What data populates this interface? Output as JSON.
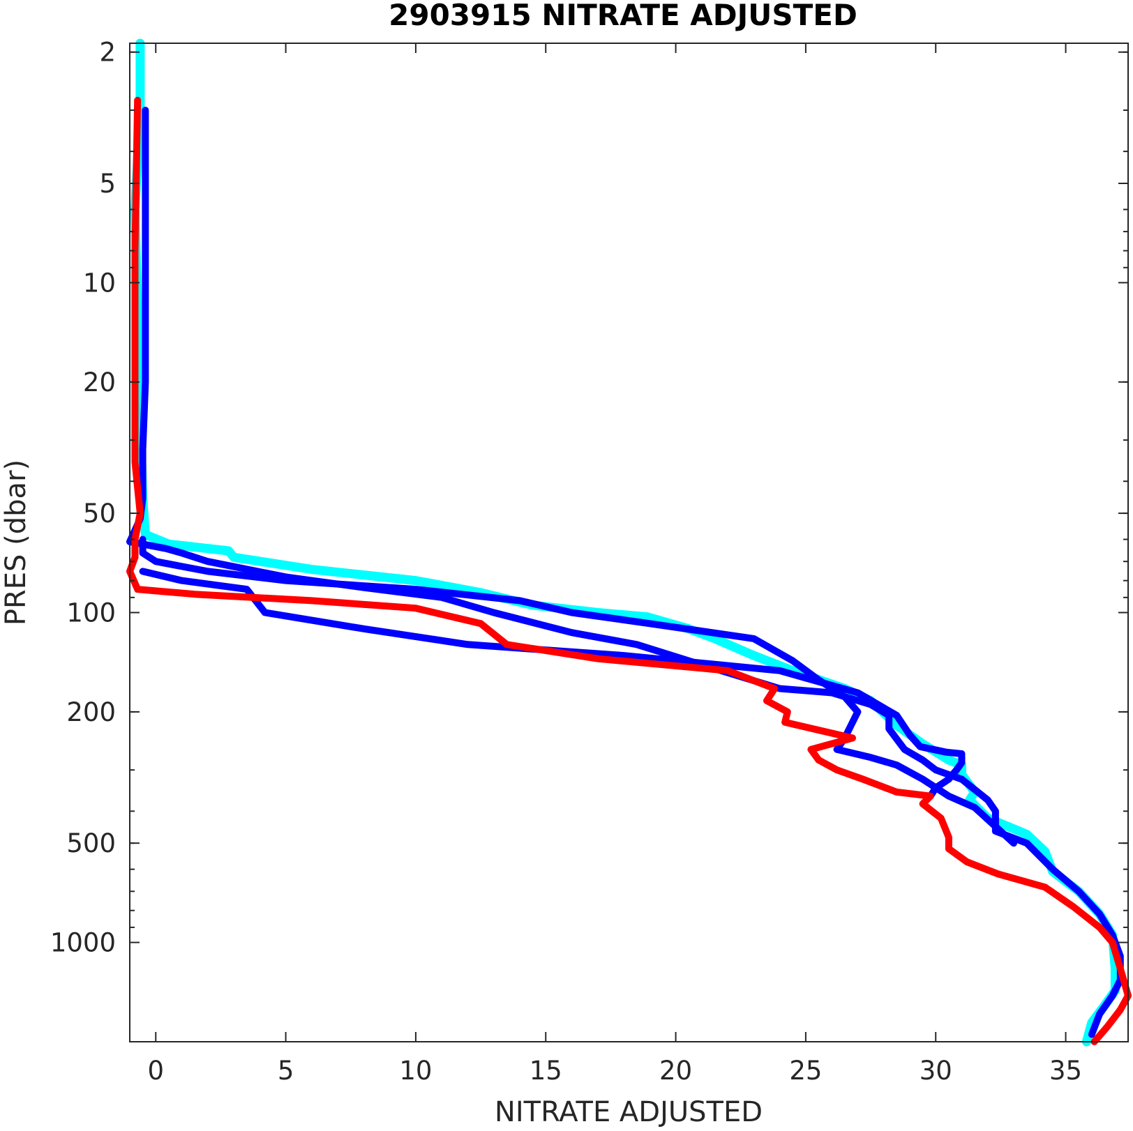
{
  "chart_data": {
    "type": "line",
    "title": "2903915  NITRATE ADJUSTED",
    "xlabel": "NITRATE ADJUSTED",
    "ylabel": "PRES (dbar)",
    "xlim": [
      -1,
      37.4
    ],
    "ylim": [
      1.88,
      2000
    ],
    "y_scale": "log",
    "y_reversed": true,
    "grid": false,
    "x_ticks": [
      0,
      5,
      10,
      15,
      20,
      25,
      30,
      35
    ],
    "y_ticks": [
      2,
      5,
      10,
      20,
      50,
      100,
      200,
      500,
      1000
    ],
    "y_tick_labels": [
      "2",
      "5",
      "10",
      "20",
      "50",
      "100",
      "200",
      "500",
      "1000"
    ],
    "series": [
      {
        "color": "#00ffff",
        "width": 13,
        "points": [
          [
            -0.6,
            1.88
          ],
          [
            -0.6,
            3
          ],
          [
            -0.8,
            6
          ],
          [
            -0.7,
            12
          ],
          [
            -0.6,
            25
          ],
          [
            -0.5,
            45
          ],
          [
            -0.4,
            58
          ],
          [
            0.5,
            62
          ],
          [
            2.8,
            65
          ],
          [
            3.0,
            68
          ],
          [
            6,
            74
          ],
          [
            10,
            80
          ],
          [
            12.5,
            87
          ],
          [
            14.5,
            95
          ],
          [
            17,
            100
          ],
          [
            18.9,
            103
          ],
          [
            20.5,
            112
          ],
          [
            21.5,
            120
          ],
          [
            23,
            135
          ],
          [
            24.5,
            150
          ],
          [
            26.5,
            170
          ],
          [
            27.5,
            185
          ],
          [
            28.5,
            220
          ],
          [
            29.5,
            250
          ],
          [
            30.5,
            280
          ],
          [
            31,
            290
          ],
          [
            31,
            310
          ],
          [
            31.5,
            350
          ],
          [
            31.3,
            370
          ],
          [
            32,
            420
          ],
          [
            33.5,
            470
          ],
          [
            34.2,
            530
          ],
          [
            34.5,
            610
          ],
          [
            35.5,
            700
          ],
          [
            36.3,
            820
          ],
          [
            36.8,
            950
          ],
          [
            36.9,
            1200
          ],
          [
            36.9,
            1400
          ],
          [
            36.5,
            1550
          ],
          [
            36.0,
            1750
          ],
          [
            35.8,
            2000
          ]
        ]
      },
      {
        "color": "#0000ff",
        "width": 10,
        "points": [
          [
            -0.4,
            3
          ],
          [
            -0.4,
            8
          ],
          [
            -0.4,
            14
          ],
          [
            -0.4,
            20
          ],
          [
            -0.5,
            32
          ],
          [
            -0.5,
            45
          ],
          [
            -0.6,
            52
          ],
          [
            -1.0,
            61
          ],
          [
            -0.5,
            62
          ],
          [
            0.4,
            64
          ],
          [
            1,
            66
          ],
          [
            2,
            70
          ],
          [
            5,
            78
          ],
          [
            8,
            84
          ],
          [
            11,
            90
          ],
          [
            13,
            100
          ],
          [
            16,
            115
          ],
          [
            18.5,
            125
          ],
          [
            20.5,
            140
          ],
          [
            24,
            170
          ],
          [
            26,
            175
          ],
          [
            27.5,
            190
          ],
          [
            28.2,
            205
          ],
          [
            28.2,
            225
          ],
          [
            28.8,
            260
          ],
          [
            29.5,
            280
          ],
          [
            30,
            300
          ],
          [
            30.5,
            310
          ],
          [
            31,
            320
          ],
          [
            32,
            370
          ],
          [
            32.3,
            400
          ],
          [
            32.3,
            460
          ],
          [
            33.5,
            500
          ],
          [
            34.5,
            600
          ],
          [
            35.5,
            700
          ],
          [
            36.3,
            820
          ],
          [
            36.8,
            950
          ],
          [
            37.1,
            1100
          ],
          [
            37.1,
            1300
          ],
          [
            36.8,
            1450
          ],
          [
            36.3,
            1650
          ],
          [
            36.0,
            1900
          ]
        ]
      },
      {
        "color": "#0000ff",
        "width": 10,
        "points": [
          [
            -0.5,
            60
          ],
          [
            -0.5,
            66
          ],
          [
            0,
            70
          ],
          [
            2,
            75
          ],
          [
            5,
            80
          ],
          [
            10,
            85
          ],
          [
            14,
            92
          ],
          [
            16,
            100
          ],
          [
            19,
            108
          ],
          [
            23,
            120
          ],
          [
            24.5,
            140
          ],
          [
            25.5,
            160
          ],
          [
            26.5,
            180
          ],
          [
            27,
            200
          ],
          [
            26.8,
            215
          ],
          [
            26.5,
            240
          ],
          [
            26.2,
            260
          ],
          [
            27.5,
            275
          ],
          [
            28.5,
            290
          ],
          [
            29.5,
            320
          ],
          [
            30.5,
            360
          ],
          [
            31.5,
            390
          ],
          [
            33,
            500
          ]
        ]
      },
      {
        "color": "#0000ff",
        "width": 10,
        "points": [
          [
            -0.5,
            75
          ],
          [
            1,
            80
          ],
          [
            3.5,
            85
          ],
          [
            4.2,
            100
          ],
          [
            8,
            112
          ],
          [
            12,
            125
          ],
          [
            18,
            135
          ],
          [
            24,
            150
          ],
          [
            27,
            175
          ],
          [
            28.5,
            205
          ],
          [
            29.0,
            235
          ],
          [
            29.4,
            255
          ],
          [
            30.4,
            265
          ],
          [
            31,
            268
          ],
          [
            31,
            285
          ],
          [
            30.8,
            300
          ],
          [
            30.5,
            320
          ],
          [
            30,
            340
          ],
          [
            29.8,
            360
          ]
        ]
      },
      {
        "color": "#ff0000",
        "width": 10,
        "points": [
          [
            -0.7,
            2.8
          ],
          [
            -0.8,
            8
          ],
          [
            -0.8,
            20
          ],
          [
            -0.8,
            35
          ],
          [
            -0.6,
            50
          ],
          [
            -0.8,
            60
          ],
          [
            -0.8,
            68
          ],
          [
            -1.0,
            75
          ],
          [
            -0.7,
            85
          ],
          [
            1.5,
            88
          ],
          [
            6,
            92
          ],
          [
            10,
            97
          ],
          [
            12.5,
            108
          ],
          [
            13.5,
            125
          ],
          [
            17,
            138
          ],
          [
            22,
            150
          ],
          [
            23.8,
            170
          ],
          [
            23.5,
            185
          ],
          [
            24.3,
            200
          ],
          [
            24.2,
            215
          ],
          [
            26.8,
            240
          ],
          [
            25.2,
            260
          ],
          [
            25.5,
            280
          ],
          [
            26.2,
            300
          ],
          [
            27.2,
            320
          ],
          [
            28.5,
            350
          ],
          [
            29.8,
            360
          ],
          [
            29.5,
            380
          ],
          [
            30.2,
            420
          ],
          [
            30.5,
            480
          ],
          [
            30.5,
            520
          ],
          [
            31.2,
            570
          ],
          [
            32.4,
            620
          ],
          [
            34.2,
            680
          ],
          [
            35.3,
            780
          ],
          [
            36.3,
            900
          ],
          [
            36.8,
            1000
          ],
          [
            37.1,
            1200
          ],
          [
            37.4,
            1450
          ],
          [
            37.1,
            1600
          ],
          [
            36.6,
            1800
          ],
          [
            36.1,
            2000
          ]
        ]
      }
    ]
  }
}
